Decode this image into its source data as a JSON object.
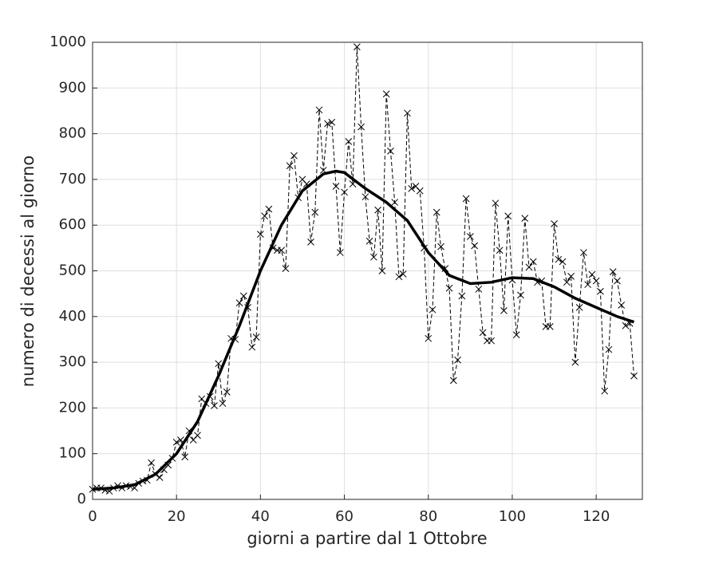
{
  "chart_data": {
    "type": "line",
    "xlabel": "giorni a partire dal 1 Ottobre",
    "ylabel": "numero di decessi al giorno",
    "xlim": [
      0,
      131
    ],
    "ylim": [
      0,
      1000
    ],
    "xticks": [
      0,
      20,
      40,
      60,
      80,
      100,
      120
    ],
    "yticks": [
      0,
      100,
      200,
      300,
      400,
      500,
      600,
      700,
      800,
      900,
      1000
    ],
    "grid": true,
    "series": [
      {
        "color": "#000000",
        "style": "dashed",
        "marker": "x",
        "x": [
          0,
          1,
          2,
          3,
          4,
          5,
          6,
          7,
          8,
          9,
          10,
          11,
          12,
          13,
          14,
          15,
          16,
          17,
          18,
          19,
          20,
          21,
          22,
          23,
          24,
          25,
          26,
          27,
          28,
          29,
          30,
          31,
          32,
          33,
          34,
          35,
          36,
          37,
          38,
          39,
          40,
          41,
          42,
          43,
          44,
          45,
          46,
          47,
          48,
          49,
          50,
          51,
          52,
          53,
          54,
          55,
          56,
          57,
          58,
          59,
          60,
          61,
          62,
          63,
          64,
          65,
          66,
          67,
          68,
          69,
          70,
          71,
          72,
          73,
          74,
          75,
          76,
          77,
          78,
          79,
          80,
          81,
          82,
          83,
          84,
          85,
          86,
          87,
          88,
          89,
          90,
          91,
          92,
          93,
          94,
          95,
          96,
          97,
          98,
          99,
          100,
          101,
          102,
          103,
          104,
          105,
          106,
          107,
          108,
          109,
          110,
          111,
          112,
          113,
          114,
          115,
          116,
          117,
          118,
          119,
          120,
          121,
          122,
          123,
          124,
          125,
          126,
          127,
          128,
          129
        ],
        "values": [
          22,
          25,
          25,
          20,
          18,
          25,
          30,
          25,
          30,
          28,
          25,
          35,
          40,
          42,
          80,
          55,
          48,
          65,
          75,
          90,
          125,
          130,
          93,
          150,
          130,
          140,
          220,
          210,
          225,
          205,
          297,
          210,
          235,
          352,
          350,
          430,
          445,
          420,
          333,
          355,
          580,
          620,
          635,
          550,
          545,
          545,
          505,
          730,
          752,
          660,
          700,
          690,
          563,
          628,
          852,
          720,
          822,
          825,
          685,
          540,
          672,
          783,
          690,
          990,
          815,
          662,
          565,
          530,
          633,
          500,
          887,
          762,
          650,
          487,
          493,
          845,
          680,
          685,
          675,
          550,
          352,
          415,
          628,
          553,
          505,
          462,
          260,
          305,
          445,
          658,
          575,
          555,
          460,
          365,
          347,
          347,
          648,
          545,
          413,
          620,
          480,
          360,
          447,
          615,
          508,
          520,
          475,
          478,
          378,
          378,
          603,
          525,
          520,
          475,
          488,
          300,
          420,
          540,
          470,
          492,
          478,
          455,
          237,
          328,
          498,
          478,
          425,
          380,
          385,
          270
        ]
      },
      {
        "color": "#000000",
        "style": "solid",
        "x": [
          0,
          5,
          10,
          15,
          20,
          25,
          30,
          35,
          40,
          45,
          50,
          55,
          58,
          60,
          65,
          70,
          75,
          80,
          85,
          90,
          95,
          100,
          105,
          110,
          115,
          120,
          125,
          129
        ],
        "values": [
          22,
          25,
          32,
          55,
          100,
          170,
          270,
          380,
          500,
          600,
          675,
          712,
          718,
          715,
          680,
          650,
          610,
          540,
          490,
          472,
          475,
          485,
          483,
          465,
          440,
          420,
          400,
          388
        ]
      }
    ]
  }
}
